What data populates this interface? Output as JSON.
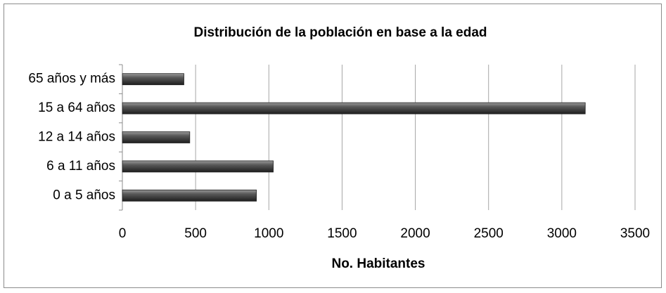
{
  "chart_data": {
    "type": "bar",
    "orientation": "horizontal",
    "title": "Distribución de la población en base a la edad",
    "x_label": "No. Habitantes",
    "categories": [
      "0 a 5 años",
      "6 a 11 años",
      "12 a 14 años",
      "15 a 64 años",
      "65 años y más"
    ],
    "values": [
      915,
      1030,
      460,
      3160,
      420
    ],
    "color": "#555555",
    "xlim": [
      0,
      3500
    ],
    "xticks": [
      0,
      500,
      1000,
      1500,
      2000,
      2500,
      3000,
      3500
    ],
    "grid": true
  }
}
